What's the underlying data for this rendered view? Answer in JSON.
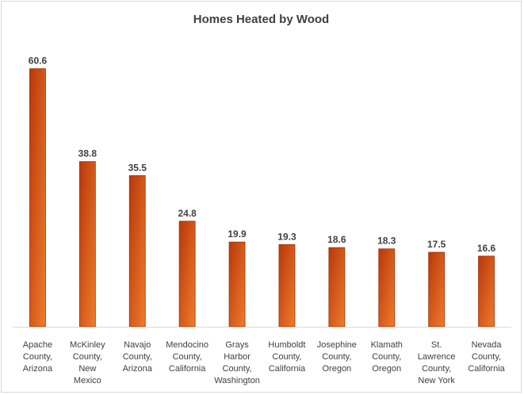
{
  "chart_data": {
    "type": "bar",
    "title": "Homes Heated by Wood",
    "xlabel": "",
    "ylabel": "",
    "ylim": [
      0,
      65
    ],
    "grid": false,
    "legend": "none",
    "categories": [
      [
        "Apache",
        "County,",
        "Arizona"
      ],
      [
        "McKinley",
        "County,",
        "New",
        "Mexico"
      ],
      [
        "Navajo",
        "County,",
        "Arizona"
      ],
      [
        "Mendocino",
        "County,",
        "California"
      ],
      [
        "Grays",
        "Harbor",
        "County,",
        "Washington"
      ],
      [
        "Humboldt",
        "County,",
        "California"
      ],
      [
        "Josephine",
        "County,",
        "Oregon"
      ],
      [
        "Klamath",
        "County,",
        "Oregon"
      ],
      [
        "St.",
        "Lawrence",
        "County,",
        "New York"
      ],
      [
        "Nevada",
        "County,",
        "California"
      ]
    ],
    "values": [
      60.6,
      38.8,
      35.5,
      24.8,
      19.9,
      19.3,
      18.6,
      18.3,
      17.5,
      16.6
    ],
    "value_labels": [
      "60.6",
      "38.8",
      "35.5",
      "24.8",
      "19.9",
      "19.3",
      "18.6",
      "18.3",
      "17.5",
      "16.6"
    ],
    "colors": {
      "bar_light": "#f07c2c",
      "bar_dark": "#b8380a",
      "bar_edge": "#a0300a",
      "axis": "#d9d9d9",
      "text": "#404040"
    }
  }
}
